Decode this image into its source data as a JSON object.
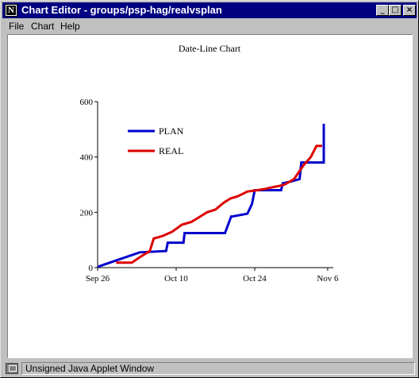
{
  "window": {
    "title": "Chart Editor - groups/psp-hag/realvsplan",
    "icon_letter": "N",
    "controls": {
      "minimize": "_",
      "maximize": "□",
      "close": "×"
    }
  },
  "menu": [
    "File",
    "Chart",
    "Help"
  ],
  "status": "Unsigned Java Applet Window",
  "chart_data": {
    "type": "line",
    "title": "Date-Line Chart",
    "xlabel": "",
    "ylabel": "",
    "ylim": [
      0,
      600
    ],
    "yticks": [
      "0",
      "200",
      "400",
      "600"
    ],
    "xlim": [
      0,
      42
    ],
    "xticks": [
      {
        "label": "Sep 26",
        "day": 0
      },
      {
        "label": "Oct 10",
        "day": 14
      },
      {
        "label": "Oct 24",
        "day": 28
      },
      {
        "label": "Nov 6",
        "day": 41
      }
    ],
    "legend_position": "top-left",
    "series": [
      {
        "name": "PLAN",
        "color": "#0000cc",
        "x": [
          0,
          7.5,
          12.2,
          12.5,
          15.3,
          15.5,
          22.7,
          23.8,
          24.0,
          26.7,
          27.5,
          28.0,
          32.7,
          33.0,
          34.2,
          36.0,
          36.3,
          40.3,
          40.3
        ],
        "y": [
          3,
          55,
          60,
          90,
          90,
          125,
          125,
          185,
          185,
          195,
          230,
          280,
          280,
          305,
          310,
          320,
          380,
          380,
          520
        ]
      },
      {
        "name": "REAL",
        "color": "#dd0000",
        "x": [
          3.3,
          6.1,
          7.7,
          9.3,
          10.0,
          11.7,
          13.3,
          15.0,
          16.7,
          18.3,
          19.5,
          21.0,
          22.5,
          23.7,
          25.0,
          26.7,
          28.5,
          30.0,
          31.0,
          32.3,
          33.3,
          35.0,
          36.7,
          38.0,
          39.0,
          40.0
        ],
        "y": [
          18,
          18,
          40,
          60,
          105,
          115,
          130,
          155,
          165,
          185,
          200,
          210,
          235,
          250,
          258,
          275,
          280,
          285,
          290,
          295,
          300,
          320,
          370,
          400,
          440,
          440
        ]
      }
    ]
  }
}
